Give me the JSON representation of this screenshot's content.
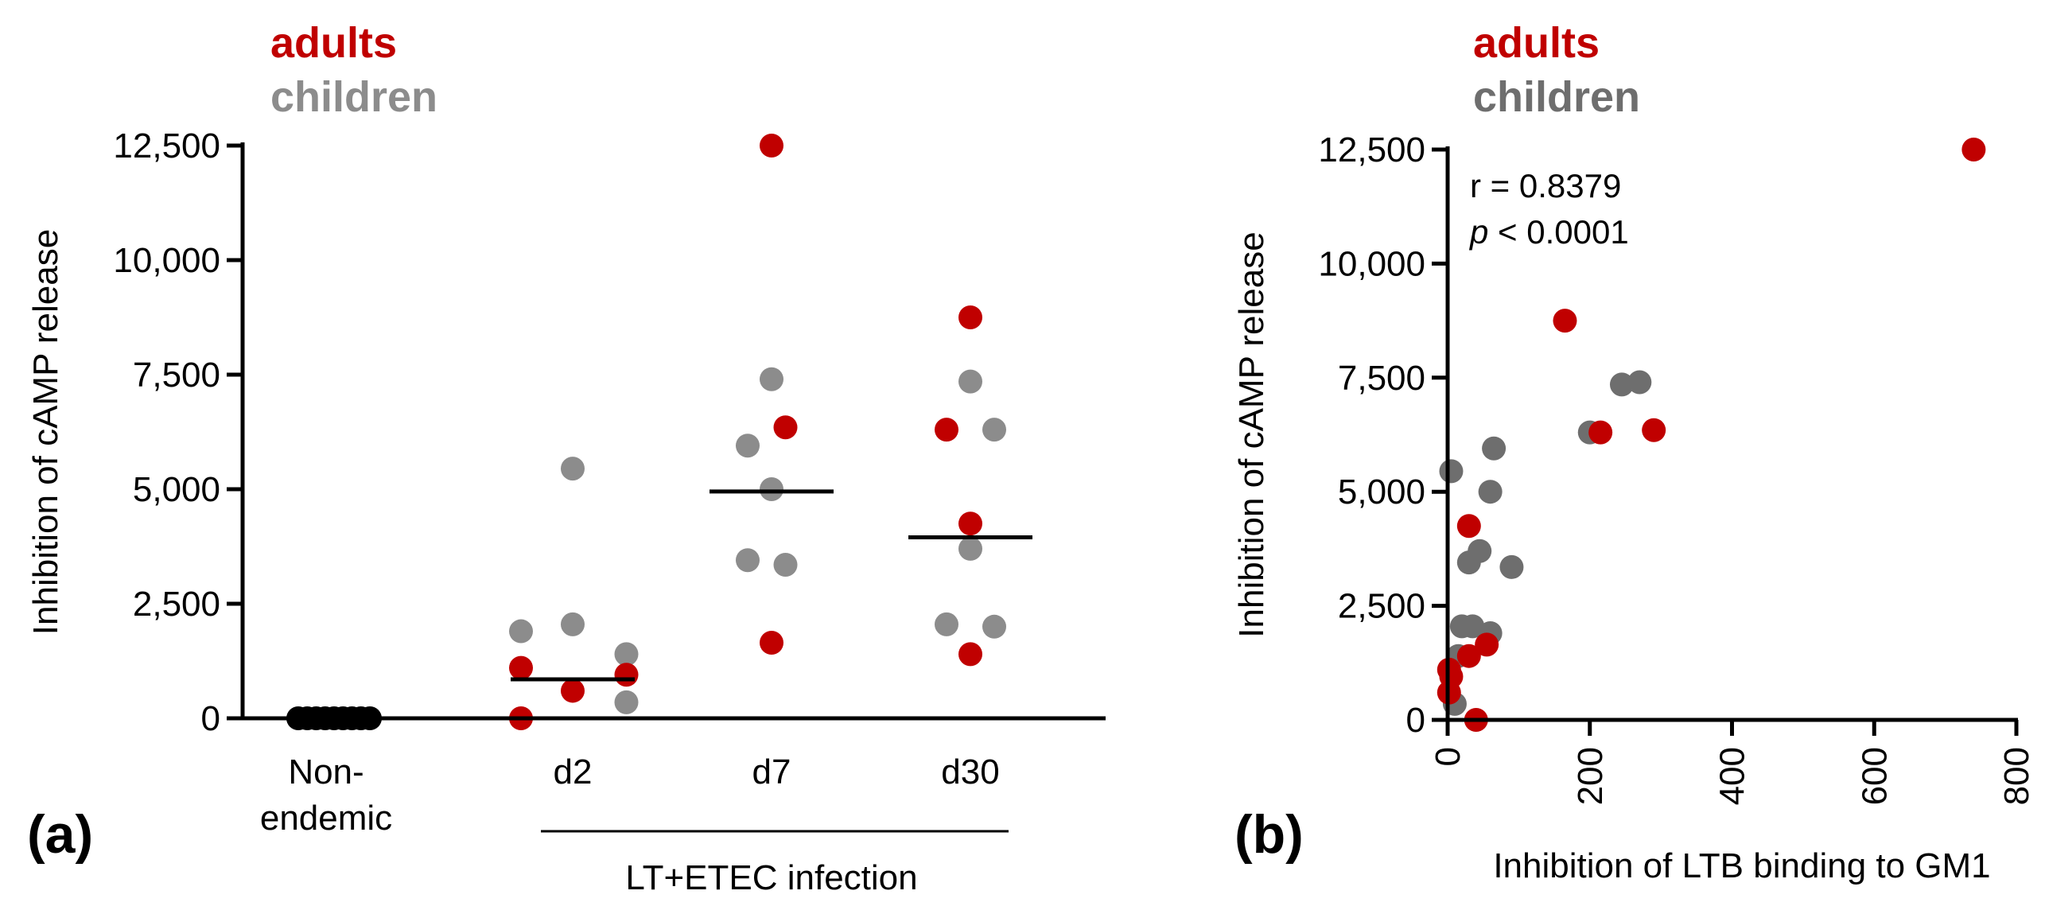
{
  "colors": {
    "adults": "#c00000",
    "children": "#8c8c8c",
    "children_b": "#6e6e6e",
    "nonendemic": "#000000",
    "axis": "#000000"
  },
  "chart_data": [
    {
      "type": "scatter",
      "panel": "(a)",
      "title": "",
      "legend": [
        "adults",
        "children"
      ],
      "ylabel": "Inhibition of cAMP release",
      "xlabel": "",
      "ylim": [
        0,
        12500
      ],
      "yticks": [
        0,
        2500,
        5000,
        7500,
        10000,
        12500
      ],
      "ytick_labels": [
        "0",
        "2,500",
        "5,000",
        "7,500",
        "10,000",
        "12,500"
      ],
      "categories": [
        "Non-endemic",
        "d2",
        "d7",
        "d30"
      ],
      "category_labels": [
        [
          "Non-",
          "endemic"
        ],
        [
          "d2"
        ],
        [
          "d7"
        ],
        [
          "d30"
        ]
      ],
      "group_bracket": {
        "label": "LT+ETEC infection",
        "spans": [
          "d2",
          "d30"
        ]
      },
      "medians": [
        null,
        850,
        4950,
        3950
      ],
      "points": [
        {
          "cat": 0,
          "dx": -0.18,
          "y": 0,
          "group": "nonendemic"
        },
        {
          "cat": 0,
          "dx": -0.135,
          "y": 0,
          "group": "nonendemic"
        },
        {
          "cat": 0,
          "dx": -0.09,
          "y": 0,
          "group": "nonendemic"
        },
        {
          "cat": 0,
          "dx": -0.045,
          "y": 0,
          "group": "nonendemic"
        },
        {
          "cat": 0,
          "dx": 0.0,
          "y": 0,
          "group": "nonendemic"
        },
        {
          "cat": 0,
          "dx": 0.045,
          "y": 0,
          "group": "nonendemic"
        },
        {
          "cat": 0,
          "dx": 0.09,
          "y": 0,
          "group": "nonendemic"
        },
        {
          "cat": 0,
          "dx": 0.135,
          "y": 0,
          "group": "nonendemic"
        },
        {
          "cat": 0,
          "dx": 0.18,
          "y": 0,
          "group": "nonendemic"
        },
        {
          "cat": 1,
          "dx": 0.0,
          "y": 5450,
          "group": "children"
        },
        {
          "cat": 1,
          "dx": 0.0,
          "y": 2050,
          "group": "children"
        },
        {
          "cat": 1,
          "dx": -0.26,
          "y": 1900,
          "group": "children"
        },
        {
          "cat": 1,
          "dx": 0.27,
          "y": 1400,
          "group": "children"
        },
        {
          "cat": 1,
          "dx": 0.27,
          "y": 350,
          "group": "children"
        },
        {
          "cat": 1,
          "dx": -0.26,
          "y": 1100,
          "group": "adults"
        },
        {
          "cat": 1,
          "dx": 0.27,
          "y": 950,
          "group": "adults"
        },
        {
          "cat": 1,
          "dx": 0.0,
          "y": 600,
          "group": "adults"
        },
        {
          "cat": 1,
          "dx": -0.26,
          "y": 0,
          "group": "adults"
        },
        {
          "cat": 2,
          "dx": 0.0,
          "y": 12500,
          "group": "adults"
        },
        {
          "cat": 2,
          "dx": 0.07,
          "y": 6350,
          "group": "adults"
        },
        {
          "cat": 2,
          "dx": 0.0,
          "y": 1650,
          "group": "adults"
        },
        {
          "cat": 2,
          "dx": 0.0,
          "y": 7400,
          "group": "children"
        },
        {
          "cat": 2,
          "dx": -0.12,
          "y": 5950,
          "group": "children"
        },
        {
          "cat": 2,
          "dx": 0.0,
          "y": 5000,
          "group": "children"
        },
        {
          "cat": 2,
          "dx": -0.12,
          "y": 3450,
          "group": "children"
        },
        {
          "cat": 2,
          "dx": 0.07,
          "y": 3350,
          "group": "children"
        },
        {
          "cat": 3,
          "dx": 0.0,
          "y": 8750,
          "group": "adults"
        },
        {
          "cat": 3,
          "dx": -0.12,
          "y": 6300,
          "group": "adults"
        },
        {
          "cat": 3,
          "dx": 0.0,
          "y": 4250,
          "group": "adults"
        },
        {
          "cat": 3,
          "dx": 0.0,
          "y": 1400,
          "group": "adults"
        },
        {
          "cat": 3,
          "dx": 0.0,
          "y": 7350,
          "group": "children"
        },
        {
          "cat": 3,
          "dx": 0.12,
          "y": 6300,
          "group": "children"
        },
        {
          "cat": 3,
          "dx": 0.0,
          "y": 3700,
          "group": "children"
        },
        {
          "cat": 3,
          "dx": -0.12,
          "y": 2050,
          "group": "children"
        },
        {
          "cat": 3,
          "dx": 0.12,
          "y": 2000,
          "group": "children"
        }
      ]
    },
    {
      "type": "scatter",
      "panel": "(b)",
      "title": "",
      "legend": [
        "adults",
        "children"
      ],
      "ylabel": "Inhibition of cAMP release",
      "xlabel": "Inhibition of LTB binding to GM1",
      "xlim": [
        0,
        800
      ],
      "ylim": [
        0,
        12500
      ],
      "xticks": [
        0,
        200,
        400,
        600,
        800
      ],
      "xtick_labels": [
        "0",
        "200",
        "400",
        "600",
        "800"
      ],
      "yticks": [
        0,
        2500,
        5000,
        7500,
        10000,
        12500
      ],
      "ytick_labels": [
        "0",
        "2,500",
        "5,000",
        "7,500",
        "10,000",
        "12,500"
      ],
      "annotation": {
        "r_text": "r = 0.8379",
        "p_symbol": "p",
        "p_rest": " < 0.0001"
      },
      "points": [
        {
          "x": 740,
          "y": 12500,
          "group": "adults"
        },
        {
          "x": 165,
          "y": 8750,
          "group": "adults"
        },
        {
          "x": 215,
          "y": 6300,
          "group": "adults"
        },
        {
          "x": 290,
          "y": 6350,
          "group": "adults"
        },
        {
          "x": 30,
          "y": 4250,
          "group": "adults"
        },
        {
          "x": 55,
          "y": 1650,
          "group": "adults"
        },
        {
          "x": 30,
          "y": 1400,
          "group": "adults"
        },
        {
          "x": 2,
          "y": 1100,
          "group": "adults"
        },
        {
          "x": 5,
          "y": 950,
          "group": "adults"
        },
        {
          "x": 2,
          "y": 600,
          "group": "adults"
        },
        {
          "x": 40,
          "y": 0,
          "group": "adults"
        },
        {
          "x": 245,
          "y": 7350,
          "group": "children"
        },
        {
          "x": 270,
          "y": 7400,
          "group": "children"
        },
        {
          "x": 200,
          "y": 6300,
          "group": "children"
        },
        {
          "x": 65,
          "y": 5950,
          "group": "children"
        },
        {
          "x": 5,
          "y": 5450,
          "group": "children"
        },
        {
          "x": 60,
          "y": 5000,
          "group": "children"
        },
        {
          "x": 45,
          "y": 3700,
          "group": "children"
        },
        {
          "x": 30,
          "y": 3450,
          "group": "children"
        },
        {
          "x": 90,
          "y": 3350,
          "group": "children"
        },
        {
          "x": 20,
          "y": 2050,
          "group": "children"
        },
        {
          "x": 35,
          "y": 2050,
          "group": "children"
        },
        {
          "x": 60,
          "y": 1900,
          "group": "children"
        },
        {
          "x": 15,
          "y": 1400,
          "group": "children"
        },
        {
          "x": 10,
          "y": 350,
          "group": "children"
        }
      ]
    }
  ]
}
